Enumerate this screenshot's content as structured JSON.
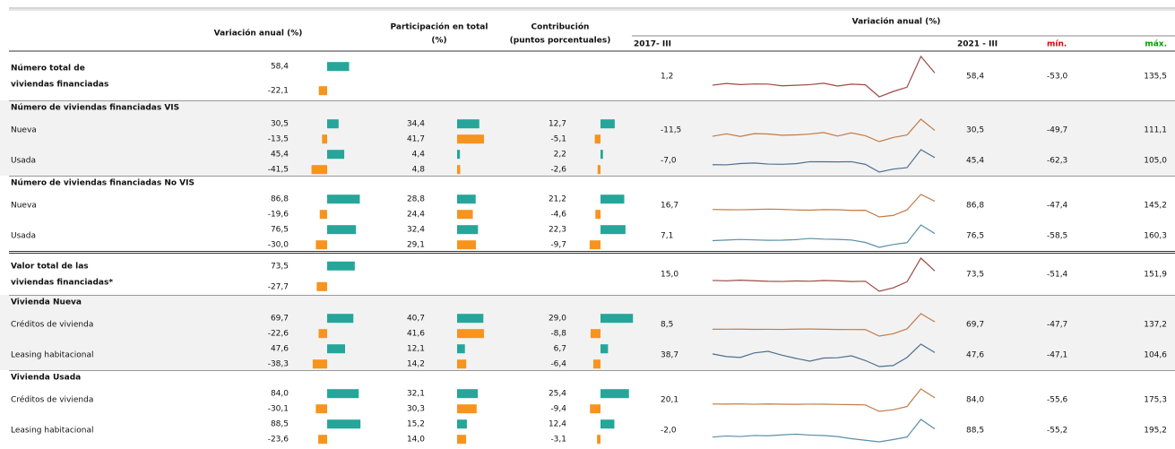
{
  "header": {
    "variation": "Variación anual (%)",
    "share": [
      "Participación en total",
      "(%)"
    ],
    "contribution": [
      "Contribución",
      "(puntos porcentuales)"
    ],
    "trend": "Variación anual (%)",
    "start": "2017- III",
    "end": "2021 - III",
    "min": "mín.",
    "max": "máx.",
    "min_color": "#e00000",
    "max_color": "#00a000"
  },
  "bar_colors": [
    "#26a69a",
    "#f7941d"
  ],
  "groups": [
    {
      "total": {
        "label": [
          "Número total de",
          "viviendas financiadas"
        ],
        "variation": [
          "58,4",
          "-22,1"
        ],
        "start": "1,2",
        "end": "58,4",
        "min": "-53,0",
        "max": "135,5",
        "trend_color": "#9b4a45",
        "trend": [
          1.2,
          9.4,
          4.1,
          7.0,
          6.5,
          -1.8,
          0.9,
          3.8,
          10.2,
          -2.6,
          6.3,
          3.0,
          -53.0,
          -28.4,
          -8.1,
          135.5,
          58.4
        ]
      }
    },
    {
      "title": "Número de viviendas financiadas VIS",
      "shaded": true,
      "rows": [
        {
          "label": "Nueva",
          "variation": [
            "30,5",
            "-13,5"
          ],
          "share": [
            "34,4",
            "41,7"
          ],
          "contribution": [
            "12,7",
            "-5,1"
          ],
          "start": "-11,5",
          "end": "30,5",
          "min": "-49,7",
          "max": "111,1",
          "trend_color": "#c17b47",
          "trend": [
            -11.5,
            6.2,
            -12.8,
            7.5,
            5.1,
            -3.9,
            -1.7,
            4.4,
            15.3,
            -9.8,
            13.0,
            -7.2,
            -49.7,
            -20.5,
            -2.3,
            111.1,
            30.5
          ]
        },
        {
          "label": "Usada",
          "variation": [
            "45,4",
            "-41,5"
          ],
          "share": [
            "4,4",
            "4,8"
          ],
          "contribution": [
            "2,2",
            "-2,6"
          ],
          "start": "-7,0",
          "end": "45,4",
          "min": "-62,3",
          "max": "105,0",
          "trend_color": "#4d6f8f",
          "trend": [
            -7.0,
            -8.5,
            1.2,
            5.6,
            -2.4,
            -4.1,
            0.3,
            15.2,
            14.8,
            13.9,
            15.0,
            -4.5,
            -62.3,
            -40.1,
            -29.6,
            105.0,
            45.4
          ]
        }
      ]
    },
    {
      "title": "Número de viviendas financiadas No VIS",
      "shaded": false,
      "rule": "double",
      "rows": [
        {
          "label": "Nueva",
          "variation": [
            "86,8",
            "-19,6"
          ],
          "share": [
            "28,8",
            "24,4"
          ],
          "contribution": [
            "21,2",
            "-4,6"
          ],
          "start": "16,7",
          "end": "86,8",
          "min": "-47,4",
          "max": "145,2",
          "trend_color": "#c17b47",
          "trend": [
            16.7,
            14.2,
            13.8,
            16.0,
            19.5,
            17.1,
            12.6,
            10.4,
            15.3,
            14.0,
            8.2,
            9.5,
            -47.4,
            -35.0,
            12.6,
            145.2,
            86.8
          ]
        },
        {
          "label": "Usada",
          "variation": [
            "76,5",
            "-30,0"
          ],
          "share": [
            "32,4",
            "29,1"
          ],
          "contribution": [
            "22,3",
            "-9,7"
          ],
          "start": "7,1",
          "end": "76,5",
          "min": "-58,5",
          "max": "160,3",
          "trend_color": "#5a8fa8",
          "trend": [
            7.1,
            12.4,
            18.6,
            14.2,
            10.1,
            11.5,
            16.8,
            28.3,
            22.0,
            19.4,
            13.2,
            -10.5,
            -58.5,
            -30.8,
            -12.7,
            160.3,
            76.5
          ]
        }
      ]
    },
    {
      "total": {
        "label": [
          "Valor total de las",
          "viviendas financiadas*"
        ],
        "variation": [
          "73,5",
          "-27,7"
        ],
        "start": "15,0",
        "end": "73,5",
        "min": "-51,4",
        "max": "151,9",
        "trend_color": "#9b4a45",
        "trend": [
          15.0,
          12.8,
          16.4,
          13.1,
          9.9,
          8.6,
          11.7,
          10.2,
          14.6,
          12.3,
          8.4,
          10.1,
          -51.4,
          -30.6,
          6.5,
          151.9,
          73.5
        ]
      }
    },
    {
      "title": "Vivienda Nueva",
      "shaded": true,
      "rows": [
        {
          "label": "Créditos de vivienda",
          "variation": [
            "69,7",
            "-22,6"
          ],
          "share": [
            "40,7",
            "41,6"
          ],
          "contribution": [
            "29,0",
            "-8,8"
          ],
          "start": "8,5",
          "end": "69,7",
          "min": "-47,7",
          "max": "137,2",
          "trend_color": "#c17b47",
          "trend": [
            8.5,
            9.1,
            9.8,
            8.0,
            8.2,
            7.4,
            9.6,
            10.3,
            8.8,
            7.1,
            6.5,
            5.9,
            -47.7,
            -28.9,
            12.0,
            137.2,
            69.7
          ]
        },
        {
          "label": "Leasing habitacional",
          "variation": [
            "47,6",
            "-38,3"
          ],
          "share": [
            "12,1",
            "14,2"
          ],
          "contribution": [
            "6,7",
            "-6,4"
          ],
          "start": "38,7",
          "end": "47,6",
          "min": "-47,1",
          "max": "104,6",
          "trend_color": "#4d6f8f",
          "trend": [
            38.7,
            20.3,
            14.6,
            45.2,
            55.8,
            30.1,
            8.4,
            -10.5,
            10.6,
            12.3,
            25.7,
            -6.2,
            -47.1,
            -40.2,
            14.5,
            104.6,
            47.6
          ]
        }
      ]
    },
    {
      "title": "Vivienda Usada",
      "shaded": false,
      "rows": [
        {
          "label": "Créditos de vivienda",
          "variation": [
            "84,0",
            "-30,1"
          ],
          "share": [
            "32,1",
            "30,3"
          ],
          "contribution": [
            "25,4",
            "-9,4"
          ],
          "start": "20,1",
          "end": "84,0",
          "min": "-55,6",
          "max": "175,3",
          "trend_color": "#c17b47",
          "trend": [
            20.1,
            19.4,
            21.2,
            17.8,
            20.6,
            18.3,
            16.9,
            19.0,
            18.2,
            15.5,
            13.4,
            10.8,
            -55.6,
            -38.7,
            -5.2,
            175.3,
            84.0
          ]
        },
        {
          "label": "Leasing habitacional",
          "variation": [
            "88,5",
            "-23,6"
          ],
          "share": [
            "15,2",
            "14,0"
          ],
          "contribution": [
            "12,4",
            "-3,1"
          ],
          "start": "-2,0",
          "end": "88,5",
          "min": "-55,2",
          "max": "195,2",
          "trend_color": "#5a8fa8",
          "trend": [
            -2.0,
            10.5,
            4.3,
            15.7,
            12.2,
            22.6,
            30.4,
            20.8,
            15.1,
            3.5,
            -20.4,
            -38.0,
            -55.2,
            -30.1,
            -1.5,
            195.2,
            88.5
          ]
        }
      ]
    }
  ]
}
